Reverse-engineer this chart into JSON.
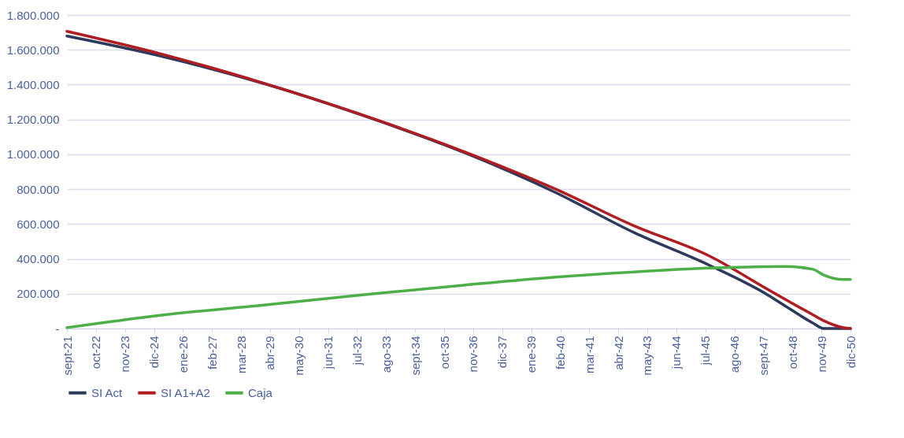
{
  "chart_data": {
    "type": "line",
    "x": [
      "2021-09",
      "2025-02",
      "2029-02",
      "2033-01",
      "2036-07",
      "2039-12",
      "2042-11",
      "2045-09",
      "2047-10",
      "2048-06",
      "2049-07",
      "2049-12",
      "2050-09",
      "2050-12"
    ],
    "series": [
      {
        "name": "SI Act",
        "color": "#2e3a5c",
        "values": [
          1679000,
          1567000,
          1403000,
          1208000,
          1010000,
          780000,
          551000,
          362000,
          200000,
          136000,
          33000,
          0,
          0,
          0
        ]
      },
      {
        "name": "SI A1+A2",
        "color": "#b01c20",
        "values": [
          1706000,
          1580000,
          1405000,
          1210000,
          1015000,
          800000,
          590000,
          415000,
          232000,
          173000,
          80000,
          45000,
          5000,
          0
        ]
      },
      {
        "name": "Caja",
        "color": "#4caf47",
        "values": [
          5000,
          75000,
          136000,
          198000,
          249000,
          295000,
          325000,
          347000,
          355000,
          356000,
          341000,
          307000,
          281000,
          281000
        ]
      }
    ],
    "xlim": [
      "2021-09",
      "2050-12"
    ],
    "xticks": [
      {
        "value": "2021-09",
        "label": "sept-21"
      },
      {
        "value": "2022-10",
        "label": "oct-22"
      },
      {
        "value": "2023-11",
        "label": "nov-23"
      },
      {
        "value": "2024-12",
        "label": "dic-24"
      },
      {
        "value": "2026-01",
        "label": "ene-26"
      },
      {
        "value": "2027-02",
        "label": "feb-27"
      },
      {
        "value": "2028-03",
        "label": "mar-28"
      },
      {
        "value": "2029-04",
        "label": "abr-29"
      },
      {
        "value": "2030-05",
        "label": "may-30"
      },
      {
        "value": "2031-06",
        "label": "jun-31"
      },
      {
        "value": "2032-07",
        "label": "jul-32"
      },
      {
        "value": "2033-08",
        "label": "ago-33"
      },
      {
        "value": "2034-09",
        "label": "sept-34"
      },
      {
        "value": "2035-10",
        "label": "oct-35"
      },
      {
        "value": "2036-11",
        "label": "nov-36"
      },
      {
        "value": "2037-12",
        "label": "dic-37"
      },
      {
        "value": "2039-01",
        "label": "ene-39"
      },
      {
        "value": "2040-02",
        "label": "feb-40"
      },
      {
        "value": "2041-03",
        "label": "mar-41"
      },
      {
        "value": "2042-04",
        "label": "abr-42"
      },
      {
        "value": "2043-05",
        "label": "may-43"
      },
      {
        "value": "2044-06",
        "label": "jun-44"
      },
      {
        "value": "2045-07",
        "label": "jul-45"
      },
      {
        "value": "2046-08",
        "label": "ago-46"
      },
      {
        "value": "2047-09",
        "label": "sept-47"
      },
      {
        "value": "2048-10",
        "label": "oct-48"
      },
      {
        "value": "2049-11",
        "label": "nov-49"
      },
      {
        "value": "2050-12",
        "label": "dic-50"
      }
    ],
    "ylim": [
      0,
      1800000
    ],
    "yticks": [
      {
        "value": 0,
        "label": "-"
      },
      {
        "value": 200000,
        "label": "200.000"
      },
      {
        "value": 400000,
        "label": "400.000"
      },
      {
        "value": 600000,
        "label": "600.000"
      },
      {
        "value": 800000,
        "label": "800.000"
      },
      {
        "value": 1000000,
        "label": "1.000.000"
      },
      {
        "value": 1200000,
        "label": "1.200.000"
      },
      {
        "value": 1400000,
        "label": "1.400.000"
      },
      {
        "value": 1600000,
        "label": "1.600.000"
      },
      {
        "value": 1800000,
        "label": "1.800.000"
      }
    ],
    "grid": "y",
    "legend": "bottom",
    "line_style": "solid"
  }
}
